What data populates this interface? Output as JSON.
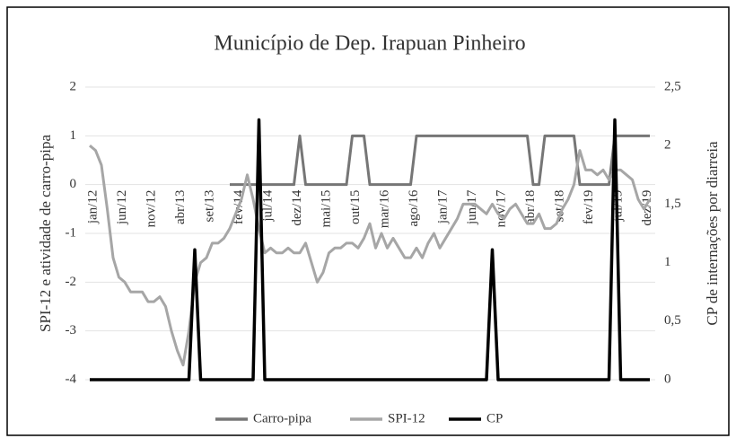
{
  "chart_data": {
    "type": "line",
    "title": "Município de Dep. Irapuan Pinheiro",
    "ylabel": "SPI-12 e atividade de carro-pipa",
    "y2label": "CP de internações por diarreia",
    "categories": [
      "jan/12",
      null,
      null,
      null,
      null,
      "jun/12",
      null,
      null,
      null,
      null,
      "nov/12",
      null,
      null,
      null,
      null,
      "abr/13",
      null,
      null,
      null,
      null,
      "set/13",
      null,
      null,
      null,
      null,
      "fev/14",
      null,
      null,
      null,
      null,
      "jul/14",
      null,
      null,
      null,
      null,
      "dez/14",
      null,
      null,
      null,
      null,
      "mai/15",
      null,
      null,
      null,
      null,
      "out/15",
      null,
      null,
      null,
      null,
      "mar/16",
      null,
      null,
      null,
      null,
      "ago/16",
      null,
      null,
      null,
      null,
      "jan/17",
      null,
      null,
      null,
      null,
      "jun/17",
      null,
      null,
      null,
      null,
      "nov/17",
      null,
      null,
      null,
      null,
      "abr/18",
      null,
      null,
      null,
      null,
      "set/18",
      null,
      null,
      null,
      null,
      "fev/19",
      null,
      null,
      null,
      null,
      "jul/19",
      null,
      null,
      null,
      null,
      "dez/19",
      null
    ],
    "series": [
      {
        "name": "Carro-pipa",
        "color": "#767676",
        "axis": "y",
        "values": [
          null,
          null,
          null,
          null,
          null,
          null,
          null,
          null,
          null,
          null,
          null,
          null,
          null,
          null,
          null,
          null,
          null,
          null,
          null,
          null,
          null,
          null,
          null,
          null,
          0,
          0,
          0,
          0,
          0,
          0,
          0,
          0,
          0,
          0,
          0,
          0,
          1,
          0,
          0,
          0,
          0,
          0,
          0,
          0,
          0,
          1,
          1,
          1,
          0,
          0,
          0,
          0,
          0,
          0,
          0,
          0,
          1,
          1,
          1,
          1,
          1,
          1,
          1,
          1,
          1,
          1,
          1,
          1,
          1,
          1,
          1,
          1,
          1,
          1,
          1,
          1,
          0,
          0,
          1,
          1,
          1,
          1,
          1,
          1,
          0,
          0,
          0,
          0,
          0,
          0,
          1,
          1,
          1,
          1,
          1,
          1,
          1
        ]
      },
      {
        "name": "SPI-12",
        "color": "#a6a6a6",
        "axis": "y",
        "values": [
          0.8,
          0.7,
          0.4,
          -0.5,
          -1.5,
          -1.9,
          -2.0,
          -2.2,
          -2.2,
          -2.2,
          -2.4,
          -2.4,
          -2.3,
          -2.5,
          -3.0,
          -3.4,
          -3.7,
          -3.0,
          -2.0,
          -1.6,
          -1.5,
          -1.2,
          -1.2,
          -1.1,
          -0.9,
          -0.6,
          -0.3,
          0.2,
          -0.3,
          -0.9,
          -1.4,
          -1.3,
          -1.4,
          -1.4,
          -1.3,
          -1.4,
          -1.4,
          -1.2,
          -1.6,
          -2.0,
          -1.8,
          -1.4,
          -1.3,
          -1.3,
          -1.2,
          -1.2,
          -1.3,
          -1.1,
          -0.8,
          -1.3,
          -1.0,
          -1.3,
          -1.1,
          -1.3,
          -1.5,
          -1.5,
          -1.3,
          -1.5,
          -1.2,
          -1.0,
          -1.3,
          -1.1,
          -0.9,
          -0.7,
          -0.4,
          -0.4,
          -0.4,
          -0.5,
          -0.6,
          -0.4,
          -0.6,
          -0.7,
          -0.5,
          -0.4,
          -0.6,
          -0.8,
          -0.8,
          -0.6,
          -0.9,
          -0.9,
          -0.8,
          -0.5,
          -0.3,
          0.0,
          0.7,
          0.3,
          0.3,
          0.2,
          0.3,
          0.1,
          0.3,
          0.3,
          0.2,
          0.1,
          -0.3,
          -0.5,
          -0.3
        ]
      },
      {
        "name": "CP",
        "color": "#000000",
        "axis": "y2",
        "values": [
          0,
          0,
          0,
          0,
          0,
          0,
          0,
          0,
          0,
          0,
          0,
          0,
          0,
          0,
          0,
          0,
          0,
          0,
          1.11,
          0,
          0,
          0,
          0,
          0,
          0,
          0,
          0,
          0,
          0,
          2.22,
          0,
          0,
          0,
          0,
          0,
          0,
          0,
          0,
          0,
          0,
          0,
          0,
          0,
          0,
          0,
          0,
          0,
          0,
          0,
          0,
          0,
          0,
          0,
          0,
          0,
          0,
          0,
          0,
          0,
          0,
          0,
          0,
          0,
          0,
          0,
          0,
          0,
          0,
          0,
          1.11,
          0,
          0,
          0,
          0,
          0,
          0,
          0,
          0,
          0,
          0,
          0,
          0,
          0,
          0,
          0,
          0,
          0,
          0,
          0,
          0,
          2.22,
          0,
          0,
          0,
          0,
          0,
          0
        ]
      }
    ],
    "ylim": [
      -4,
      2
    ],
    "yticks": [
      -4,
      -3,
      -2,
      -1,
      0,
      1,
      2
    ],
    "y2lim": [
      0,
      2.5
    ],
    "y2ticks": [
      0,
      {
        "value": 0.5,
        "label": "0,5"
      },
      1,
      {
        "value": 1.5,
        "label": "1,5"
      },
      2,
      {
        "value": 2.5,
        "label": "2,5"
      }
    ],
    "grid": true,
    "legend": "bottom"
  }
}
